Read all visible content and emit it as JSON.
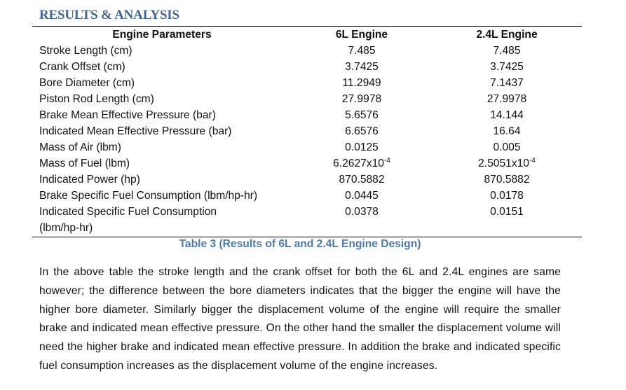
{
  "section": {
    "heading": "RESULTS & ANALYSIS"
  },
  "table": {
    "headers": {
      "param": "Engine Parameters",
      "engine_6l": "6L Engine",
      "engine_24l": "2.4L Engine"
    },
    "rows": [
      {
        "param": "Stroke Length (cm)",
        "v6l": "7.485",
        "v24l": "7.485"
      },
      {
        "param": "Crank Offset (cm)",
        "v6l": "3.7425",
        "v24l": "3.7425"
      },
      {
        "param": "Bore Diameter (cm)",
        "v6l": "11.2949",
        "v24l": "7.1437"
      },
      {
        "param": "Piston Rod Length (cm)",
        "v6l": "27.9978",
        "v24l": "27.9978"
      },
      {
        "param": "Brake Mean Effective Pressure (bar)",
        "v6l": "5.6576",
        "v24l": "14.144"
      },
      {
        "param": "Indicated Mean Effective Pressure (bar)",
        "v6l": "6.6576",
        "v24l": "16.64"
      },
      {
        "param": "Mass of Air (lbm)",
        "v6l": "0.0125",
        "v24l": "0.005"
      },
      {
        "param": "Mass of Fuel (lbm)",
        "v6l": "6.2627x10",
        "v6l_exp": "-4",
        "v24l": "2.5051x10",
        "v24l_exp": "-4"
      },
      {
        "param": "Indicated Power (hp)",
        "v6l": "870.5882",
        "v24l": "870.5882"
      },
      {
        "param": "Brake Specific Fuel Consumption (lbm/hp-hr)",
        "v6l": "0.0445",
        "v24l": "0.0178"
      },
      {
        "param": "Indicated Specific Fuel Consumption (lbm/hp-hr)",
        "v6l": "0.0378",
        "v24l": "0.0151"
      }
    ],
    "caption": "Table 3 (Results of 6L and 2.4L Engine Design)"
  },
  "paragraph": "In the above table the stroke length and the crank offset for both the 6L and 2.4L engines are same however; the difference between the bore diameters indicates that the bigger the engine will have the higher bore diameter. Similarly bigger the displacement volume of the engine will require the smaller brake and indicated mean effective pressure. On the other hand the smaller the displacement volume will need the higher brake and indicated mean effective pressure. In addition the brake and indicated specific fuel consumption increases as the displacement volume of the engine increases."
}
